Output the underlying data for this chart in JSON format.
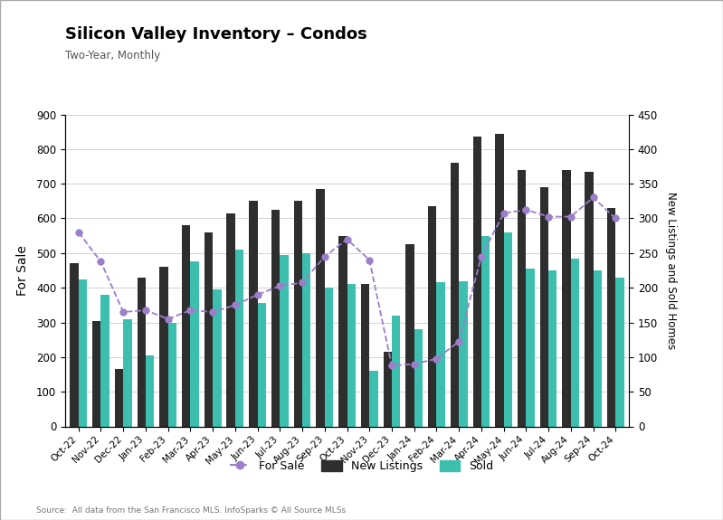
{
  "months": [
    "Oct-22",
    "Nov-22",
    "Dec-22",
    "Jan-23",
    "Feb-23",
    "Mar-23",
    "Apr-23",
    "May-23",
    "Jun-23",
    "Jul-23",
    "Aug-23",
    "Sep-23",
    "Oct-23",
    "Nov-23",
    "Dec-23",
    "Jan-24",
    "Feb-24",
    "Mar-24",
    "Apr-24",
    "May-24",
    "Jun-24",
    "Jul-24",
    "Aug-24",
    "Sep-24",
    "Oct-24"
  ],
  "for_sale": [
    560,
    475,
    330,
    335,
    310,
    335,
    330,
    350,
    380,
    405,
    415,
    490,
    540,
    480,
    175,
    180,
    195,
    245,
    490,
    615,
    625,
    605,
    605,
    660,
    600
  ],
  "new_listings": [
    470,
    305,
    165,
    430,
    460,
    580,
    560,
    615,
    650,
    625,
    650,
    685,
    550,
    410,
    215,
    525,
    635,
    760,
    835,
    845,
    740,
    690,
    740,
    735,
    630
  ],
  "sold": [
    425,
    380,
    310,
    205,
    300,
    475,
    395,
    510,
    355,
    495,
    500,
    400,
    410,
    160,
    320,
    280,
    415,
    420,
    550,
    560,
    455,
    450,
    485,
    450,
    430
  ],
  "title": "Silicon Valley Inventory – Condos",
  "subtitle": "Two-Year, Monthly",
  "ylabel_left": "For Sale",
  "ylabel_right": "New Listings and Sold Homes",
  "source": "Source:  All data from the San Francisco MLS. InfoSparks © All Source MLSs",
  "ylim_left": [
    0,
    900
  ],
  "ylim_right": [
    0,
    450
  ],
  "yticks_left": [
    0,
    100,
    200,
    300,
    400,
    500,
    600,
    700,
    800,
    900
  ],
  "yticks_right": [
    0,
    50,
    100,
    150,
    200,
    250,
    300,
    350,
    400,
    450
  ],
  "bar_color_new_listings": "#2e2e2e",
  "bar_color_sold": "#3dbfb0",
  "line_color_for_sale": "#9b7fc9",
  "background_color": "#ffffff",
  "legend_labels": [
    "For Sale",
    "New Listings",
    "Sold"
  ],
  "bar_width": 0.38,
  "figsize": [
    7.99,
    5.75
  ],
  "dpi": 100
}
